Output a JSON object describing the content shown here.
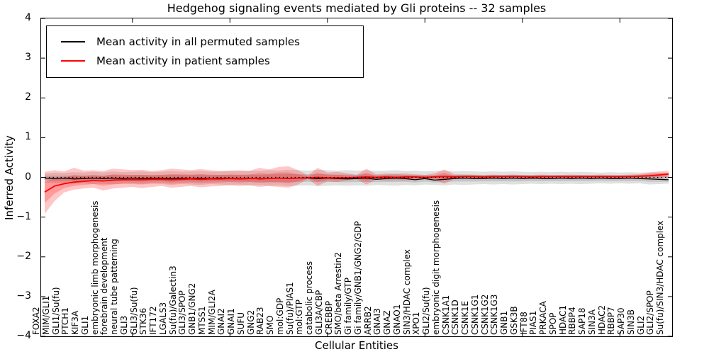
{
  "title": "Hedgehog signaling events mediated by Gli proteins -- 32 samples",
  "axes": {
    "xlabel": "Cellular Entities",
    "ylabel": "Inferred Activity"
  },
  "legend": {
    "items": [
      {
        "label": "Mean activity in all permuted samples",
        "color": "#000000"
      },
      {
        "label": "Mean activity in patient samples",
        "color": "#ff0000"
      }
    ]
  },
  "chart_data": {
    "type": "line",
    "title": "Hedgehog signaling events mediated by Gli proteins -- 32 samples",
    "xlabel": "Cellular Entities",
    "ylabel": "Inferred Activity",
    "ylim": [
      -4,
      4
    ],
    "yticks": [
      4,
      3,
      2,
      1,
      0,
      -1,
      -2,
      -3,
      -4
    ],
    "xtick_marks_every": 10,
    "grid": false,
    "zero_line": "black dotted at y=0",
    "legend_position": "upper left",
    "categories": [
      "FOXA2",
      "MIM/GLI1",
      "GLI1/Su(fu)",
      "PTCH1",
      "KIF3A",
      "GLI1",
      "embryonic limb morphogenesis",
      "forebrain development",
      "neural tube patterning",
      "GLI3",
      "GLI3/Su(fu)",
      "STK36",
      "IFT172",
      "LGALS3",
      "Su(fu)/Galectin3",
      "GLI3/SPOP",
      "GNB1/GNG2",
      "MTSS1",
      "MIM/GLI2A",
      "GNAI2",
      "GNAI1",
      "SUFU",
      "GNG2",
      "RAB23",
      "SMO",
      "mol:GDP",
      "Su(fu)/PIAS1",
      "mol:GTP",
      "catabolic process",
      "GLI3A/CBP",
      "CREBBP",
      "SMO/beta Arrestin2",
      "Gi family/GTP",
      "Gi family/GNB1/GNG2/GDP",
      "ARRB2",
      "GNAI3",
      "GNAZ",
      "GNAO1",
      "SIN3/HDAC complex",
      "XPO1",
      "GLI2/Su(fu)",
      "embryonic digit morphogenesis",
      "CSNK1A1",
      "CSNK1D",
      "CSNK1E",
      "CSNK1G1",
      "CSNK1G2",
      "CSNK1G3",
      "GNB1",
      "GSK3B",
      "IFT88",
      "PIAS1",
      "PRKACA",
      "SPOP",
      "HDAC1",
      "RBBP4",
      "SAP18",
      "SIN3A",
      "HDAC2",
      "RBBP7",
      "SAP30",
      "SIN3B",
      "GLI2",
      "GLI2/SPOP",
      "Su(fu)/SIN3/HDAC complex"
    ],
    "series": [
      {
        "name": "Mean activity in all permuted samples",
        "color": "#000000",
        "band_color": "#000000",
        "band_opacity": 0.12,
        "values": [
          -0.02,
          -0.03,
          -0.02,
          -0.04,
          -0.03,
          -0.02,
          -0.03,
          -0.02,
          -0.03,
          -0.02,
          -0.03,
          -0.02,
          -0.02,
          -0.03,
          -0.02,
          -0.03,
          -0.02,
          -0.03,
          -0.02,
          -0.02,
          -0.03,
          -0.02,
          -0.04,
          -0.03,
          -0.02,
          -0.03,
          -0.02,
          -0.02,
          -0.03,
          -0.02,
          -0.03,
          -0.04,
          -0.03,
          -0.02,
          -0.05,
          -0.03,
          -0.02,
          -0.03,
          -0.06,
          -0.03,
          -0.07,
          -0.05,
          -0.03,
          -0.02,
          -0.03,
          -0.03,
          -0.02,
          -0.03,
          -0.02,
          -0.03,
          -0.02,
          -0.03,
          -0.03,
          -0.02,
          -0.03,
          -0.02,
          -0.03,
          -0.02,
          -0.03,
          -0.03,
          -0.02,
          -0.03,
          -0.04,
          -0.05,
          -0.06
        ],
        "band_upper": [
          0.1,
          0.12,
          0.11,
          0.13,
          0.12,
          0.14,
          0.12,
          0.15,
          0.13,
          0.14,
          0.15,
          0.13,
          0.14,
          0.16,
          0.14,
          0.15,
          0.16,
          0.14,
          0.15,
          0.16,
          0.15,
          0.17,
          0.16,
          0.18,
          0.17,
          0.19,
          0.18,
          0.17,
          0.19,
          0.18,
          0.17,
          0.18,
          0.17,
          0.18,
          0.16,
          0.17,
          0.18,
          0.16,
          0.17,
          0.15,
          0.16,
          0.17,
          0.15,
          0.16,
          0.15,
          0.14,
          0.15,
          0.14,
          0.15,
          0.14,
          0.13,
          0.14,
          0.13,
          0.14,
          0.13,
          0.14,
          0.13,
          0.12,
          0.13,
          0.12,
          0.13,
          0.12,
          0.13,
          0.12,
          0.11
        ],
        "band_lower": [
          -0.13,
          -0.15,
          -0.14,
          -0.16,
          -0.15,
          -0.17,
          -0.16,
          -0.18,
          -0.16,
          -0.17,
          -0.18,
          -0.16,
          -0.17,
          -0.19,
          -0.17,
          -0.18,
          -0.19,
          -0.17,
          -0.18,
          -0.19,
          -0.18,
          -0.2,
          -0.19,
          -0.21,
          -0.2,
          -0.22,
          -0.21,
          -0.2,
          -0.22,
          -0.21,
          -0.2,
          -0.21,
          -0.2,
          -0.21,
          -0.19,
          -0.2,
          -0.21,
          -0.19,
          -0.2,
          -0.18,
          -0.19,
          -0.2,
          -0.18,
          -0.19,
          -0.18,
          -0.17,
          -0.18,
          -0.17,
          -0.18,
          -0.17,
          -0.16,
          -0.17,
          -0.16,
          -0.17,
          -0.16,
          -0.17,
          -0.16,
          -0.15,
          -0.16,
          -0.15,
          -0.16,
          -0.15,
          -0.18,
          -0.17,
          -0.16
        ]
      },
      {
        "name": "Mean activity in patient samples",
        "color": "#ff0000",
        "band_color": "#ff0000",
        "band_opacity": 0.22,
        "values": [
          -0.37,
          -0.22,
          -0.16,
          -0.12,
          -0.1,
          -0.08,
          -0.09,
          -0.07,
          -0.06,
          -0.06,
          -0.06,
          -0.05,
          -0.05,
          -0.06,
          -0.05,
          -0.04,
          -0.05,
          -0.04,
          -0.04,
          -0.03,
          -0.04,
          -0.03,
          -0.03,
          -0.03,
          -0.02,
          -0.03,
          -0.02,
          -0.01,
          0.0,
          -0.01,
          -0.01,
          -0.01,
          0.0,
          0.01,
          0.0,
          0.01,
          0.0,
          0.01,
          0.01,
          0.0,
          0.01,
          0.02,
          0.01,
          0.02,
          0.02,
          0.01,
          0.02,
          0.02,
          0.02,
          0.02,
          0.01,
          0.02,
          0.02,
          0.02,
          0.02,
          0.02,
          0.02,
          0.02,
          0.02,
          0.02,
          0.02,
          0.03,
          0.04,
          0.06,
          0.08
        ],
        "band_upper": [
          0.14,
          0.18,
          0.15,
          0.24,
          0.17,
          0.18,
          0.16,
          0.22,
          0.2,
          0.18,
          0.19,
          0.16,
          0.18,
          0.22,
          0.2,
          0.18,
          0.21,
          0.18,
          0.16,
          0.17,
          0.18,
          0.16,
          0.24,
          0.2,
          0.26,
          0.28,
          0.18,
          0.05,
          0.24,
          0.12,
          0.14,
          0.1,
          0.06,
          0.22,
          0.08,
          0.1,
          0.09,
          0.1,
          0.08,
          0.06,
          0.1,
          0.2,
          0.08,
          0.07,
          0.07,
          0.06,
          0.07,
          0.06,
          0.07,
          0.06,
          0.06,
          0.07,
          0.06,
          0.06,
          0.07,
          0.06,
          0.06,
          0.07,
          0.06,
          0.06,
          0.07,
          0.08,
          0.12,
          0.15,
          0.16
        ],
        "band_lower": [
          -0.92,
          -0.6,
          -0.38,
          -0.31,
          -0.28,
          -0.26,
          -0.33,
          -0.28,
          -0.26,
          -0.24,
          -0.27,
          -0.24,
          -0.22,
          -0.26,
          -0.24,
          -0.22,
          -0.25,
          -0.23,
          -0.22,
          -0.2,
          -0.22,
          -0.2,
          -0.24,
          -0.22,
          -0.24,
          -0.26,
          -0.18,
          -0.04,
          -0.22,
          -0.1,
          -0.12,
          -0.08,
          -0.05,
          -0.18,
          -0.06,
          -0.08,
          -0.07,
          -0.08,
          -0.06,
          -0.05,
          -0.06,
          -0.16,
          -0.04,
          -0.03,
          -0.03,
          -0.03,
          -0.03,
          -0.02,
          -0.03,
          -0.02,
          -0.03,
          -0.03,
          -0.02,
          -0.03,
          -0.02,
          -0.03,
          -0.02,
          -0.03,
          -0.02,
          -0.03,
          -0.02,
          -0.02,
          -0.02,
          -0.01,
          0.0
        ]
      }
    ]
  }
}
